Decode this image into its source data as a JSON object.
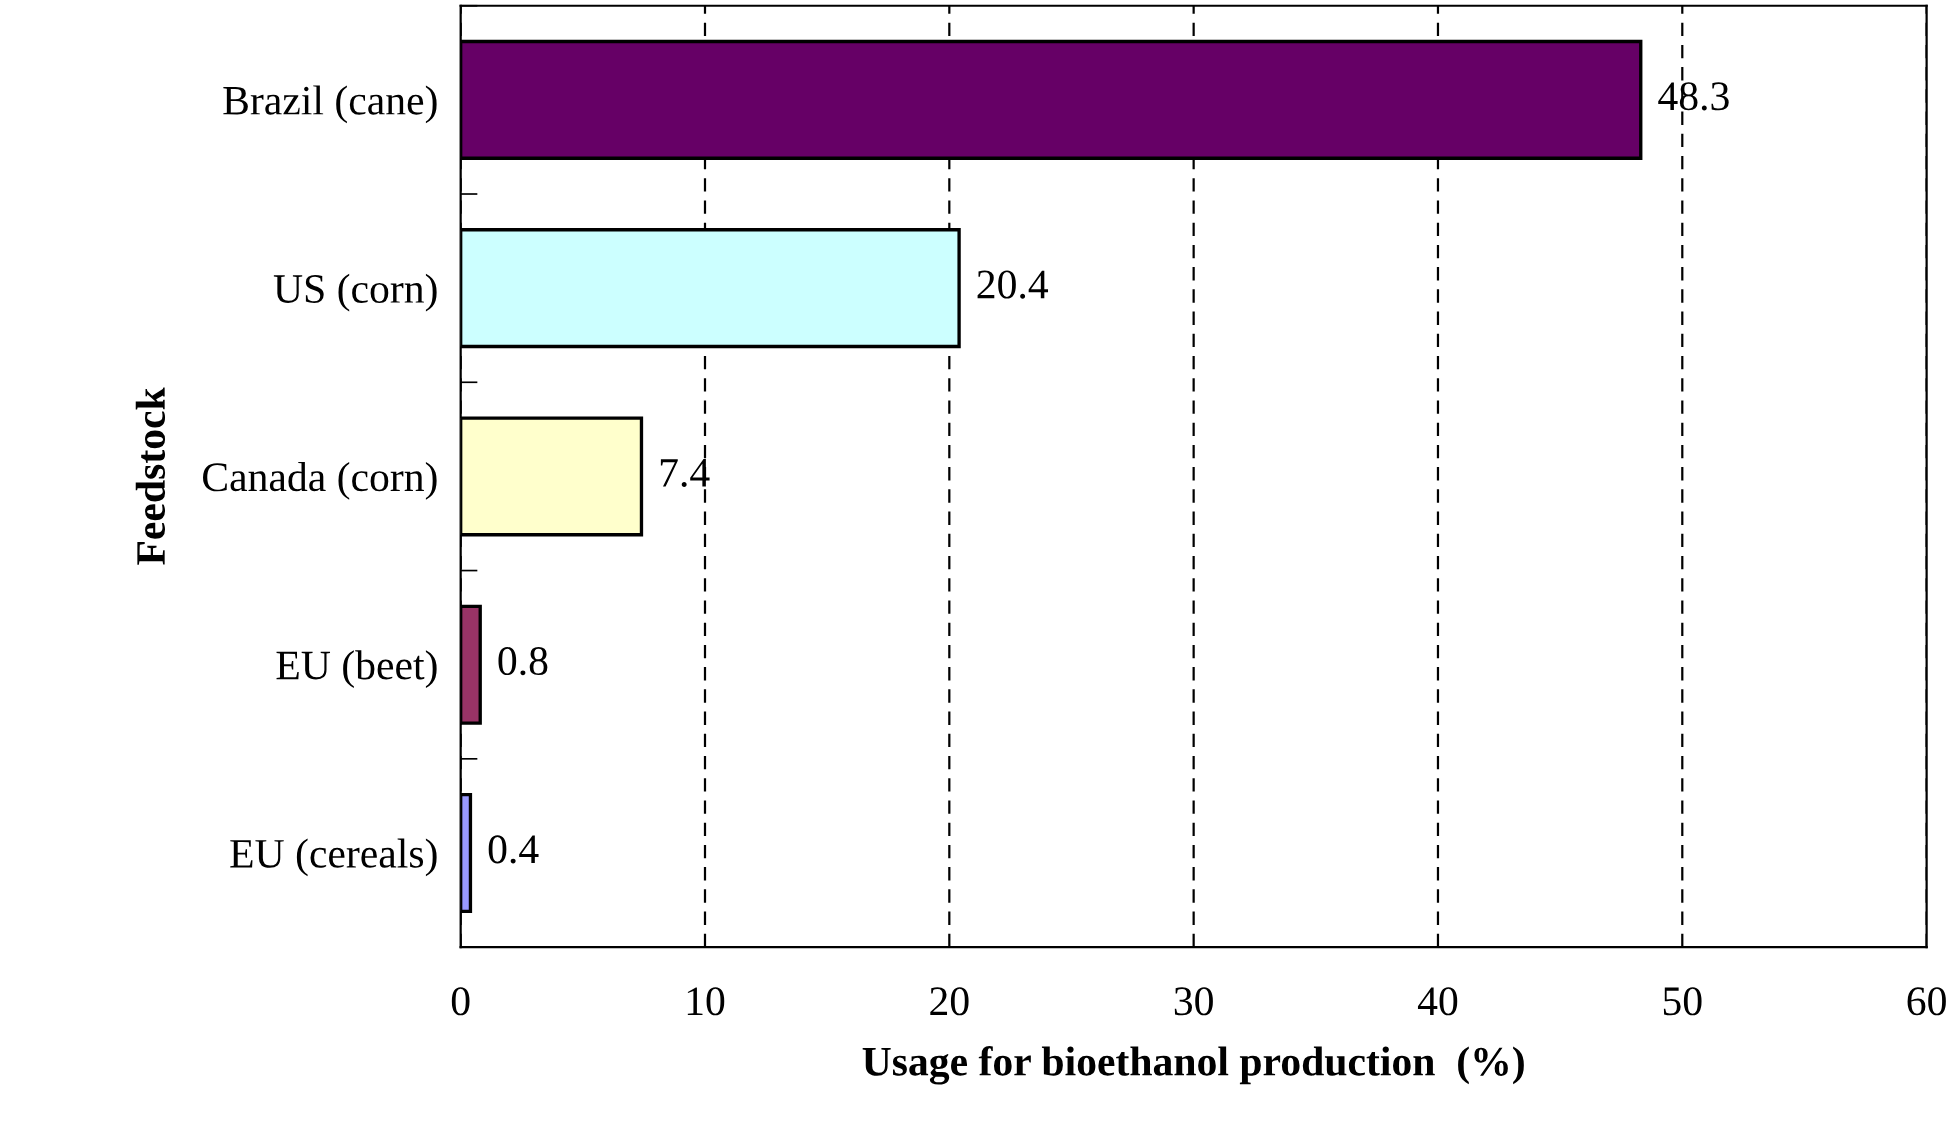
{
  "chart_data": {
    "type": "bar",
    "orientation": "horizontal",
    "xlabel": "Usage for bioethanol production  (%)",
    "ylabel": "Feedstock",
    "categories": [
      "Brazil (cane)",
      "US (corn)",
      "Canada (corn)",
      "EU (beet)",
      "EU (cereals)"
    ],
    "values": [
      48.3,
      20.4,
      7.4,
      0.8,
      0.4
    ],
    "colors": [
      "#660066",
      "#ccffff",
      "#ffffcc",
      "#993366",
      "#9999ff"
    ],
    "xlim": [
      0,
      60
    ],
    "xticks": [
      0,
      10,
      20,
      30,
      40,
      50,
      60
    ],
    "grid": "x",
    "data_labels": true,
    "legend": false
  }
}
